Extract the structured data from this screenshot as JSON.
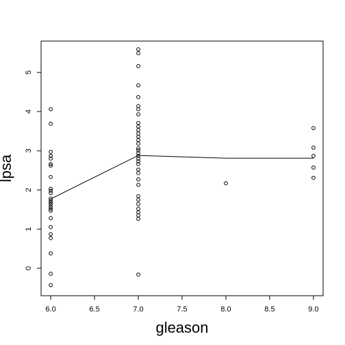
{
  "chart_data": {
    "type": "scatter",
    "xlabel": "gleason",
    "ylabel": "lpsa",
    "xlim": [
      5.89,
      9.11
    ],
    "ylim": [
      -0.7,
      5.8
    ],
    "xticks": [
      {
        "value": 6,
        "label": "6.0"
      },
      {
        "value": 6.5,
        "label": "6.5"
      },
      {
        "value": 7,
        "label": "7.0"
      },
      {
        "value": 7.5,
        "label": "7.5"
      },
      {
        "value": 8,
        "label": "8.0"
      },
      {
        "value": 8.5,
        "label": "8.5"
      },
      {
        "value": 9,
        "label": "9.0"
      }
    ],
    "yticks": [
      0,
      1,
      2,
      3,
      4,
      5
    ],
    "color": "#000000",
    "series": [
      {
        "type": "scatter",
        "x": [
          6,
          6,
          6,
          6,
          6,
          6,
          6,
          6,
          6,
          6,
          6,
          6,
          6,
          6,
          6,
          6,
          6,
          6,
          6,
          6,
          6,
          6,
          6,
          6,
          6,
          7,
          7,
          7,
          7,
          7,
          7,
          7,
          7,
          7,
          7,
          7,
          7,
          7,
          7,
          7,
          7,
          7,
          7,
          7,
          7,
          7,
          7,
          7,
          7,
          7,
          7,
          7,
          7,
          7,
          7,
          7,
          7,
          7,
          7,
          8,
          9,
          9,
          9,
          9,
          9
        ],
        "values": [
          4.06,
          3.69,
          2.97,
          2.87,
          2.8,
          2.66,
          2.62,
          2.33,
          2.03,
          1.98,
          1.92,
          1.78,
          1.73,
          1.68,
          1.63,
          1.57,
          1.52,
          1.47,
          1.28,
          1.05,
          0.87,
          0.77,
          0.38,
          -0.14,
          -0.43,
          5.59,
          5.49,
          5.16,
          4.67,
          4.37,
          4.14,
          4.06,
          3.93,
          3.71,
          3.62,
          3.53,
          3.44,
          3.36,
          3.27,
          3.18,
          3.06,
          3.01,
          2.94,
          2.87,
          2.8,
          2.73,
          2.66,
          2.52,
          2.43,
          2.27,
          2.13,
          1.84,
          1.75,
          1.64,
          1.52,
          1.43,
          1.35,
          1.26,
          -0.16,
          2.17,
          3.58,
          3.08,
          2.87,
          2.57,
          2.31
        ]
      },
      {
        "type": "line",
        "x": [
          6,
          7,
          8,
          9
        ],
        "values": [
          1.77,
          2.88,
          2.81,
          2.81
        ]
      }
    ]
  }
}
